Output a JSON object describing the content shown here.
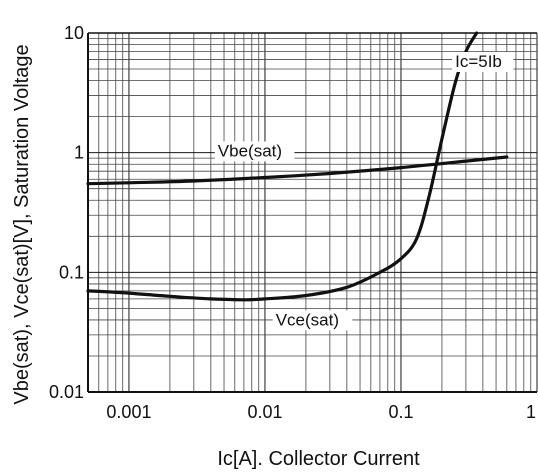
{
  "chart_data": {
    "type": "line",
    "x_scale": "log",
    "y_scale": "log",
    "xlim": [
      0.0005,
      1
    ],
    "ylim": [
      0.01,
      10
    ],
    "grid": true,
    "xlabel": "Ic[A]. Collector Current",
    "ylabel": "Vbe(sat), Vce(sat)[V], Saturation Voltage",
    "x_tick_labels": [
      {
        "value": 0.001,
        "label": "0.001"
      },
      {
        "value": 0.01,
        "label": "0.01"
      },
      {
        "value": 0.1,
        "label": "0.1"
      },
      {
        "value": 1,
        "label": "1"
      }
    ],
    "y_tick_labels": [
      {
        "value": 0.01,
        "label": "0.01"
      },
      {
        "value": 0.1,
        "label": "0.1"
      },
      {
        "value": 1,
        "label": "1"
      },
      {
        "value": 10,
        "label": "10"
      }
    ],
    "annotations": [
      {
        "text": "Ic=5Ib",
        "x": 0.25,
        "y": 5.2
      },
      {
        "text": "Vbe(sat)",
        "x": 0.0045,
        "y": 0.93
      },
      {
        "text": "Vce(sat)",
        "x": 0.012,
        "y": 0.036
      }
    ],
    "series": [
      {
        "name": "Vbe(sat)",
        "x": [
          0.0005,
          0.001,
          0.003,
          0.01,
          0.03,
          0.1,
          0.3,
          0.6
        ],
        "y": [
          0.55,
          0.56,
          0.58,
          0.62,
          0.67,
          0.75,
          0.85,
          0.92
        ]
      },
      {
        "name": "Vce(sat)",
        "x": [
          0.0005,
          0.001,
          0.002,
          0.004,
          0.007,
          0.01,
          0.02,
          0.04,
          0.07,
          0.1,
          0.13,
          0.16,
          0.2,
          0.25,
          0.3,
          0.36
        ],
        "y": [
          0.07,
          0.067,
          0.063,
          0.06,
          0.059,
          0.06,
          0.064,
          0.075,
          0.1,
          0.13,
          0.19,
          0.42,
          1.3,
          3.8,
          7.0,
          10
        ]
      }
    ]
  }
}
